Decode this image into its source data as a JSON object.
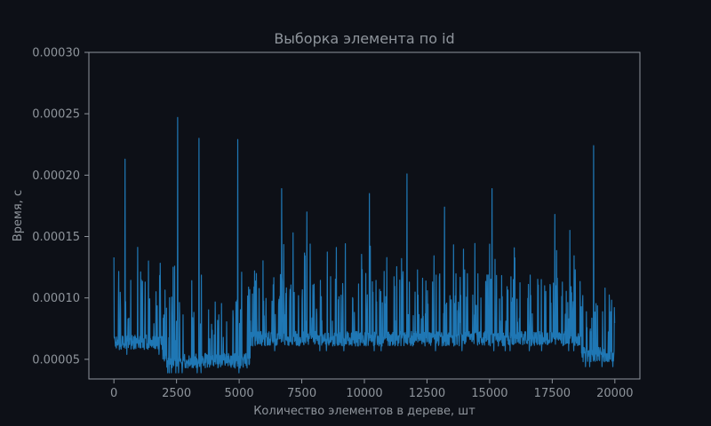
{
  "chart_data": {
    "type": "line",
    "title": "Выборка элемента по id",
    "xlabel": "Количество элементов в дереве, шт",
    "ylabel": "Время, с",
    "xlim": [
      -1000,
      21000
    ],
    "ylim": [
      3.4e-05,
      0.0003
    ],
    "x_ticks": [
      0,
      2500,
      5000,
      7500,
      10000,
      12500,
      15000,
      17500,
      20000
    ],
    "x_tick_labels": [
      "0",
      "2500",
      "5000",
      "7500",
      "10000",
      "12500",
      "15000",
      "17500",
      "20000"
    ],
    "y_ticks": [
      5e-05,
      0.0001,
      0.00015,
      0.0002,
      0.00025,
      0.0003
    ],
    "y_tick_labels": [
      "0.00005",
      "0.00010",
      "0.00015",
      "0.00020",
      "0.00025",
      "0.00030"
    ],
    "grid": false,
    "series": [
      {
        "color": "#1f77b4",
        "baseline_segments": [
          {
            "x_start": 0,
            "x_end": 1950,
            "y": 6.2e-05
          },
          {
            "x_start": 1950,
            "x_end": 5450,
            "y": 4.7e-05
          },
          {
            "x_start": 5450,
            "x_end": 18650,
            "y": 6.5e-05
          },
          {
            "x_start": 18650,
            "x_end": 20000,
            "y": 5.2e-05
          }
        ],
        "peaks": [
          {
            "x": 0,
            "y": 0.000133
          },
          {
            "x": 450,
            "y": 0.000213
          },
          {
            "x": 2550,
            "y": 0.000247
          },
          {
            "x": 3400,
            "y": 0.00023
          },
          {
            "x": 4950,
            "y": 0.000229
          },
          {
            "x": 6700,
            "y": 0.000189
          },
          {
            "x": 7150,
            "y": 0.000153
          },
          {
            "x": 7700,
            "y": 0.00017
          },
          {
            "x": 10200,
            "y": 0.000185
          },
          {
            "x": 11700,
            "y": 0.000201
          },
          {
            "x": 13200,
            "y": 0.000174
          },
          {
            "x": 15100,
            "y": 0.000189
          },
          {
            "x": 17600,
            "y": 0.000168
          },
          {
            "x": 18200,
            "y": 0.000155
          },
          {
            "x": 19150,
            "y": 0.000224
          }
        ]
      }
    ]
  }
}
